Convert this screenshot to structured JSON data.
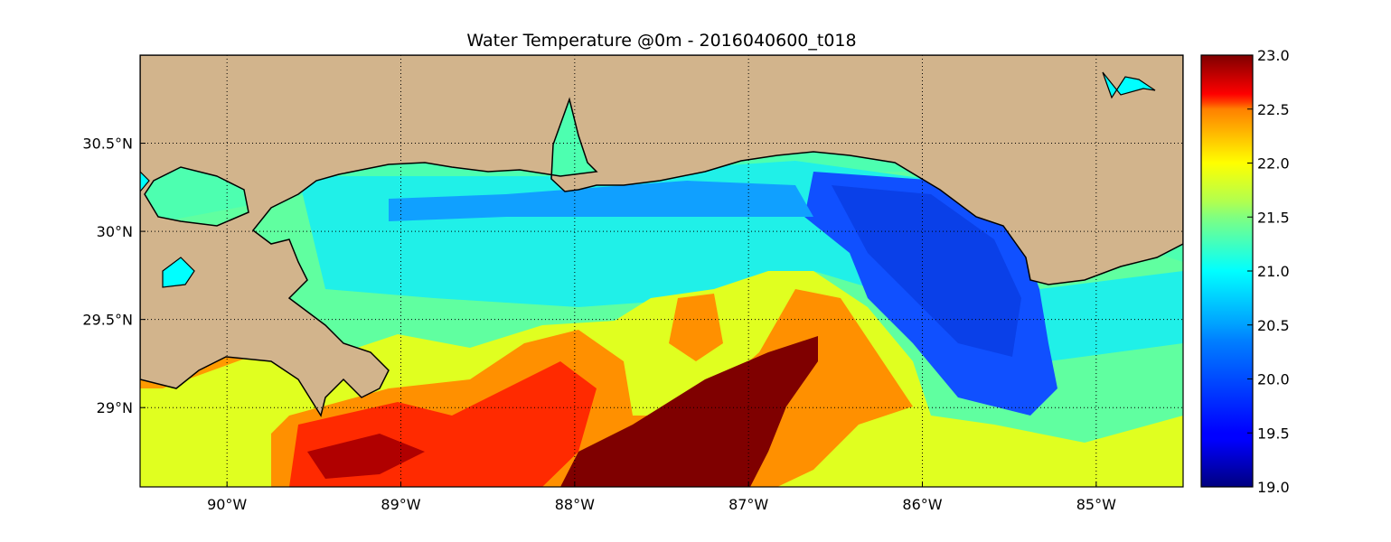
{
  "title": "Water Temperature @0m - 2016040600_t018",
  "map": {
    "lon_range": [
      -90.5,
      -84.5
    ],
    "lat_range": [
      28.55,
      31.0
    ],
    "variable": "Water Temperature",
    "depth": "0m",
    "land_color": "#d2b48c",
    "coast_color": "#000000",
    "grid": true,
    "grid_style": "dotted",
    "x_ticks": [
      {
        "value": -90,
        "label": "90°W"
      },
      {
        "value": -89,
        "label": "89°W"
      },
      {
        "value": -88,
        "label": "88°W"
      },
      {
        "value": -87,
        "label": "87°W"
      },
      {
        "value": -86,
        "label": "86°W"
      },
      {
        "value": -85,
        "label": "85°W"
      }
    ],
    "y_ticks": [
      {
        "value": 30.5,
        "label": "30.5°N"
      },
      {
        "value": 30.0,
        "label": "30°N"
      },
      {
        "value": 29.5,
        "label": "29.5°N"
      },
      {
        "value": 29.0,
        "label": "29°N"
      }
    ]
  },
  "colorbar": {
    "min": 19.0,
    "max": 23.0,
    "colormap": "jet",
    "ticks": [
      "19.0",
      "19.5",
      "20.0",
      "20.5",
      "21.0",
      "21.5",
      "22.0",
      "22.5",
      "23.0"
    ]
  }
}
